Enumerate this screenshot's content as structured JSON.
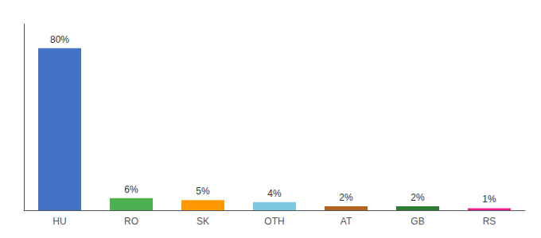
{
  "chart_data": {
    "type": "bar",
    "categories": [
      "HU",
      "RO",
      "SK",
      "OTH",
      "AT",
      "GB",
      "RS"
    ],
    "values": [
      80,
      6,
      5,
      4,
      2,
      2,
      1
    ],
    "value_labels": [
      "80%",
      "6%",
      "5%",
      "4%",
      "2%",
      "2%",
      "1%"
    ],
    "colors": [
      "#4472c4",
      "#4caf50",
      "#ff9800",
      "#7ec8e3",
      "#b5651d",
      "#2e7d32",
      "#e91e8c"
    ],
    "data_labels": true,
    "ylim": [
      0,
      92
    ],
    "yticks": [],
    "tick_labels": "x",
    "grid": false
  }
}
